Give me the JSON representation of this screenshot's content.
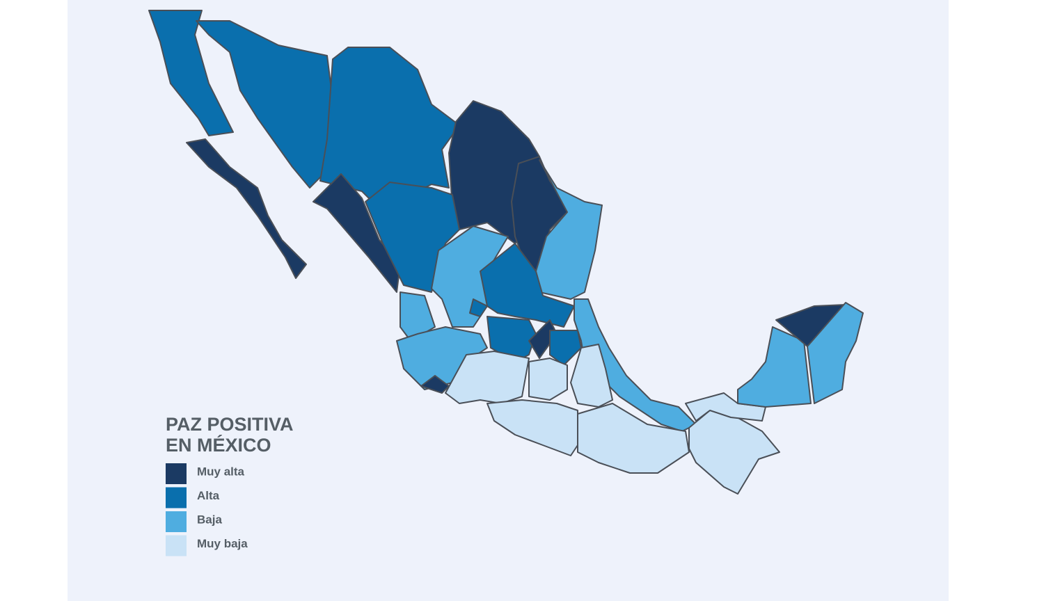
{
  "title_lines": [
    "PAZ POSITIVA",
    "EN MÉXICO"
  ],
  "legend": [
    {
      "name": "Muy alta",
      "color": "#1b3a63"
    },
    {
      "name": "Alta",
      "color": "#0a6fad"
    },
    {
      "name": "Baja",
      "color": "#4fade0"
    },
    {
      "name": "Muy baja",
      "color": "#c9e2f6"
    }
  ]
}
